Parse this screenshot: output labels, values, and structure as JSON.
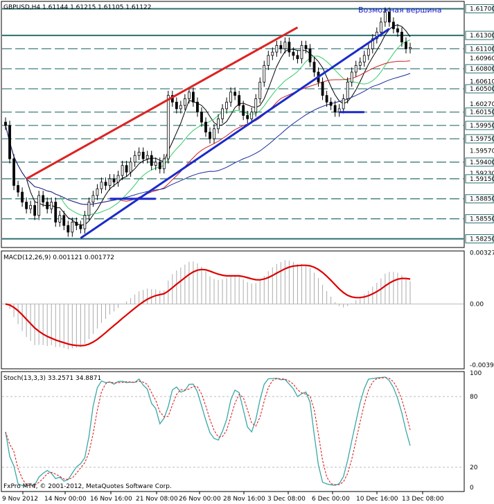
{
  "chart_data": {
    "type": "candlestick",
    "symbol_header": "GBPUSD,H4  1.61144 1.61215 1.61105 1.61122",
    "annotation": "Возможная вершина",
    "copyright": "FxPro MT4, © 2001-2012, MetaQuotes Software Corp.",
    "price_axis_labels": [
      "1.61700",
      "1.61300",
      "1.61100",
      "1.60960",
      "1.60800",
      "1.60610",
      "1.60500",
      "1.60270",
      "1.60150",
      "1.59950",
      "1.59750",
      "1.59570",
      "1.59400",
      "1.59230",
      "1.59150",
      "1.58850",
      "1.58550",
      "1.58250"
    ],
    "price_axis_values": [
      1.617,
      1.613,
      1.611,
      1.6096,
      1.608,
      1.6061,
      1.605,
      1.6027,
      1.6015,
      1.5995,
      1.5975,
      1.5957,
      1.594,
      1.5923,
      1.5915,
      1.5885,
      1.5855,
      1.5825
    ],
    "highlighted_labels": [
      "1.61700",
      "1.61300",
      "1.61100",
      "1.60800",
      "1.60500",
      "1.60150",
      "1.59950",
      "1.59750",
      "1.59400",
      "1.59150",
      "1.58850",
      "1.58550",
      "1.58250"
    ],
    "ylim": [
      1.5813,
      1.618
    ],
    "time_axis_labels": [
      "9 Nov 2012",
      "14 Nov 00:00",
      "16 Nov 16:00",
      "21 Nov 08:00",
      "26 Nov 00:00",
      "28 Nov 16:00",
      "3 Dec 08:00",
      "6 Dec 00:00",
      "10 Dec 16:00",
      "13 Dec 08:00"
    ],
    "horizontal_levels": [
      1.617,
      1.613,
      1.611,
      1.608,
      1.605,
      1.6015,
      1.5995,
      1.5975,
      1.594,
      1.5915,
      1.5885,
      1.5855,
      1.5825
    ],
    "solid_levels": [
      1.617,
      1.613,
      1.5825
    ],
    "close_series": [
      1.5995,
      1.5945,
      1.5905,
      1.5895,
      1.588,
      1.587,
      1.5875,
      1.586,
      1.589,
      1.588,
      1.587,
      1.588,
      1.585,
      1.586,
      1.5845,
      1.5835,
      1.585,
      1.5845,
      1.584,
      1.586,
      1.588,
      1.589,
      1.59,
      1.591,
      1.5905,
      1.5915,
      1.591,
      1.592,
      1.5935,
      1.5925,
      1.594,
      1.595,
      1.5955,
      1.5945,
      1.595,
      1.5935,
      1.594,
      1.593,
      1.5945,
      1.604,
      1.603,
      1.602,
      1.6025,
      1.6035,
      1.6045,
      1.603,
      1.6015,
      1.6,
      1.5985,
      1.5975,
      1.599,
      1.6005,
      1.602,
      1.603,
      1.6045,
      1.604,
      1.6025,
      1.601,
      1.6005,
      1.6015,
      1.6035,
      1.606,
      1.6085,
      1.61,
      1.6105,
      1.6115,
      1.611,
      1.612,
      1.6105,
      1.61,
      1.6095,
      1.6115,
      1.611,
      1.609,
      1.6075,
      1.606,
      1.604,
      1.603,
      1.6025,
      1.6015,
      1.602,
      1.6035,
      1.606,
      1.6075,
      1.6085,
      1.609,
      1.61,
      1.611,
      1.6125,
      1.6135,
      1.615,
      1.6165,
      1.615,
      1.614,
      1.6135,
      1.612,
      1.611,
      1.6112
    ],
    "macd": {
      "label": "MACD(12,26,9) 0.001121 0.001772",
      "axis_labels": [
        "0.00327",
        "0.00",
        "-0.00391"
      ],
      "ylim": [
        -0.0041,
        0.0033
      ]
    },
    "stoch": {
      "label": "Stoch(13,3,3) 33.2571 34.8871",
      "axis_labels": [
        "100",
        "80",
        "20",
        "0"
      ],
      "ylim": [
        0,
        100
      ]
    }
  }
}
